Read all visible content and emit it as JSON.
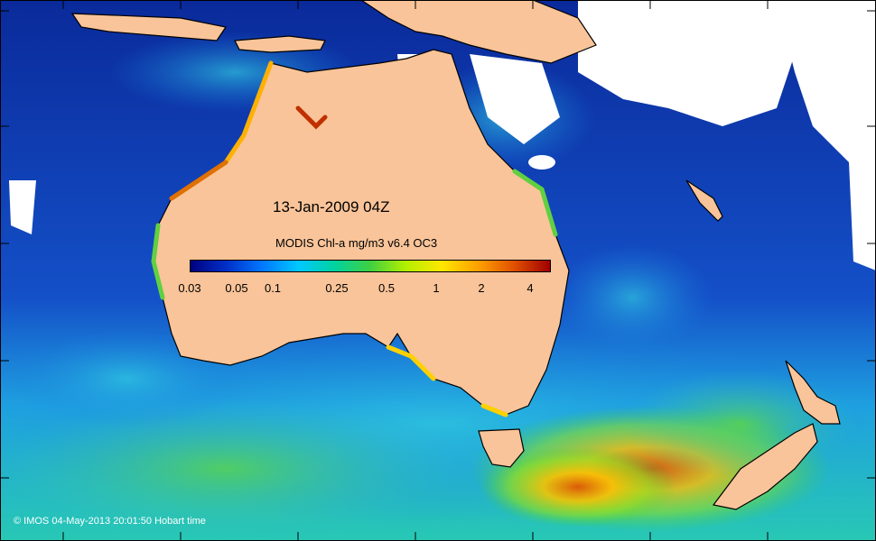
{
  "map": {
    "date_label": "13-Jan-2009 04Z",
    "colorbar": {
      "title": "MODIS Chl-a mg/m3 v6.4 OC3",
      "ticks": [
        "0.03",
        "0.05",
        "0.1",
        "0.25",
        "0.5",
        "1",
        "2",
        "4"
      ],
      "gradient": [
        "#000080",
        "#0030c8",
        "#0078ff",
        "#00c8ff",
        "#00d2a0",
        "#40d040",
        "#b4f000",
        "#ffe600",
        "#ffa000",
        "#e05000",
        "#a00000"
      ]
    },
    "credit": "© IMOS 04-May-2013 20:01:50 Hobart time",
    "colors": {
      "land": "#f9c499",
      "no_data": "#ffffff",
      "coast": "#000000"
    }
  }
}
